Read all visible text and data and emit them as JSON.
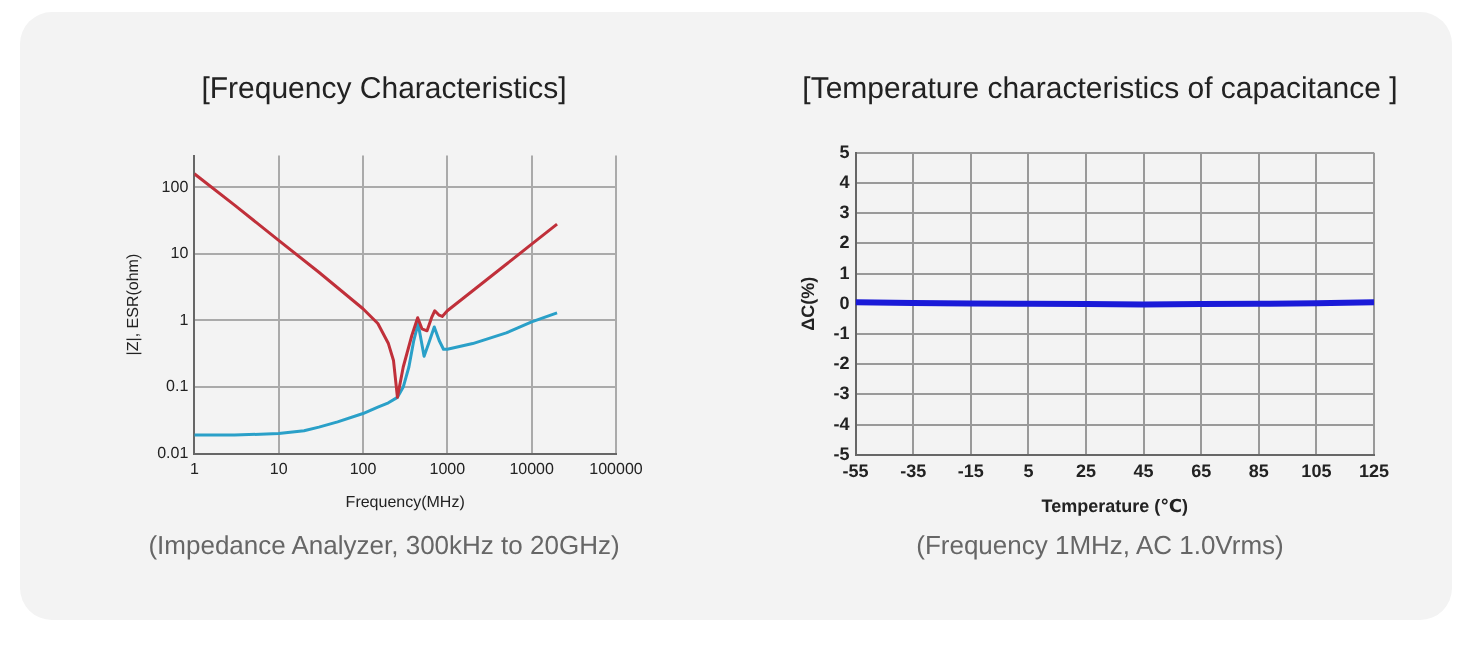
{
  "chart_data": [
    {
      "type": "line",
      "title": "[Frequency Characteristics]",
      "xlabel": "Frequency(MHz)",
      "ylabel": "|Z|, ESR(ohm)",
      "log": "xy",
      "grid": true,
      "xlim": [
        1,
        100000
      ],
      "xticks": [
        1,
        10,
        100,
        1000,
        10000,
        100000
      ],
      "ylim": [
        0.01,
        300
      ],
      "yticks": [
        0.01,
        0.1,
        1,
        10,
        100
      ],
      "annotations": [
        "(Impedance Analyzer, 300kHz to 20GHz)"
      ],
      "series": [
        {
          "color": "#c0303a",
          "x": [
            1,
            3,
            10,
            30,
            100,
            150,
            200,
            230,
            256,
            300,
            380,
            445,
            500,
            575,
            650,
            710,
            800,
            870,
            1000,
            2000,
            5000,
            10000,
            20000
          ],
          "values": [
            160,
            54,
            16,
            5.3,
            1.5,
            0.9,
            0.45,
            0.25,
            0.07,
            0.2,
            0.6,
            1.1,
            0.75,
            0.7,
            1.1,
            1.4,
            1.2,
            1.15,
            1.4,
            2.8,
            7,
            14,
            28
          ]
        },
        {
          "color": "#2aa0c8",
          "x": [
            1,
            3,
            10,
            20,
            30,
            50,
            100,
            150,
            200,
            256,
            300,
            350,
            400,
            450,
            490,
            530,
            600,
            700,
            800,
            900,
            1000,
            2000,
            5000,
            10000,
            20000
          ],
          "values": [
            0.019,
            0.019,
            0.02,
            0.022,
            0.025,
            0.03,
            0.04,
            0.05,
            0.058,
            0.07,
            0.1,
            0.2,
            0.5,
            0.9,
            0.5,
            0.29,
            0.45,
            0.8,
            0.5,
            0.37,
            0.37,
            0.45,
            0.65,
            0.95,
            1.3
          ]
        }
      ]
    },
    {
      "type": "line",
      "title": "[Temperature characteristics of capacitance ]",
      "xlabel": "Temperature (℃)",
      "ylabel": "ΔC(%)",
      "grid": true,
      "xlim": [
        -55,
        125
      ],
      "xticks": [
        -55,
        -35,
        -15,
        5,
        25,
        45,
        65,
        85,
        105,
        125
      ],
      "ylim": [
        -5,
        5
      ],
      "yticks": [
        -5,
        -4,
        -3,
        -2,
        -1,
        0,
        1,
        2,
        3,
        4,
        5
      ],
      "annotations": [
        "(Frequency 1MHz, AC 1.0Vrms)"
      ],
      "series": [
        {
          "color": "#1a1ad8",
          "x": [
            -55,
            -35,
            -15,
            5,
            25,
            45,
            65,
            85,
            105,
            125
          ],
          "values": [
            0.05,
            0.03,
            0.01,
            0,
            -0.01,
            -0.02,
            -0.01,
            0,
            0.02,
            0.05
          ]
        }
      ]
    }
  ]
}
